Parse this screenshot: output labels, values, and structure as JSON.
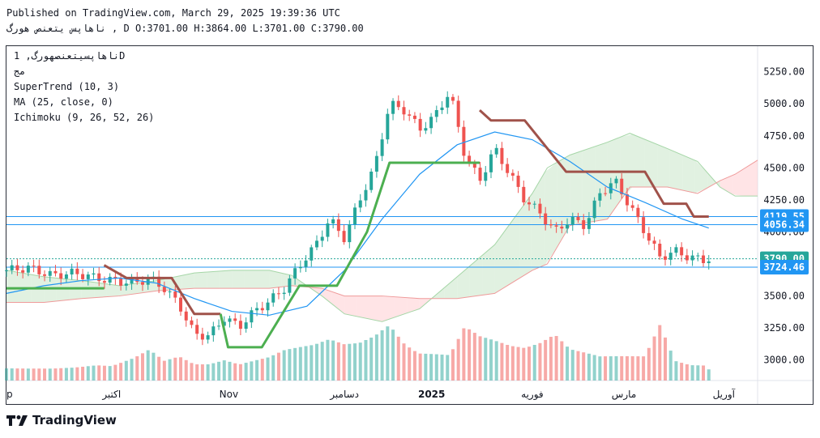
{
  "header": {
    "published": "Published on TradingView.com, March 29, 2025 19:39:36 UTC",
    "symbol_line": "ناهاپس یتعنص هورگ , D O:3701.00 H:3864.00 L:3701.00 C:3790.00"
  },
  "legend": {
    "symbol": "ناهاپسیتعنصهورگ, 1D",
    "sub": "مج",
    "supertrend": "SuperTrend (10, 3)",
    "ma": "MA (25, close, 0)",
    "ichimoku": "Ichimoku (9, 26, 52, 26)"
  },
  "footer": {
    "brand": "TradingView",
    "logo_icon": "tradingview-logo-icon"
  },
  "colors": {
    "up": "#26a69a",
    "down": "#ef5350",
    "supertrend_up": "#4caf50",
    "supertrend_down": "#a0524a",
    "ma": "#2196f3",
    "cloud_bull": "#c8e6c9",
    "cloud_bear": "#ffcdd2",
    "hline": "#2196f3"
  },
  "chart_data": {
    "type": "candlestick",
    "y_ticks": [
      "5250.00",
      "5000.00",
      "4750.00",
      "4500.00",
      "4250.00",
      "4000.00",
      "3750.00",
      "3500.00",
      "3250.00",
      "3000.00"
    ],
    "ylim": [
      2840,
      5450
    ],
    "x_ticks": [
      {
        "label": "p",
        "t": 0
      },
      {
        "label": "اکتبر",
        "t": 0.14
      },
      {
        "label": "Nov",
        "t": 0.296
      },
      {
        "label": "دسامبر",
        "t": 0.45
      },
      {
        "label": "2025",
        "t": 0.566
      },
      {
        "label": "فوریه",
        "t": 0.7
      },
      {
        "label": "مارس",
        "t": 0.822
      },
      {
        "label": "آوریل",
        "t": 0.955
      }
    ],
    "price_labels": [
      {
        "value": 4119.55,
        "text": "4119.55",
        "color": "#2196f3"
      },
      {
        "value": 4056.34,
        "text": "4056.34",
        "color": "#2196f3"
      },
      {
        "value": 3790.0,
        "text": "3790.00",
        "color": "#26a69a"
      },
      {
        "value": 3724.46,
        "text": "3724.46",
        "color": "#2196f3"
      }
    ],
    "anchors": [
      {
        "t": 0.0,
        "c": 3700,
        "v": 0.25
      },
      {
        "t": 0.03,
        "c": 3720,
        "v": 0.22
      },
      {
        "t": 0.06,
        "c": 3660,
        "v": 0.2
      },
      {
        "t": 0.09,
        "c": 3680,
        "v": 0.2
      },
      {
        "t": 0.12,
        "c": 3640,
        "v": 0.22
      },
      {
        "t": 0.14,
        "c": 3620,
        "v": 0.2
      },
      {
        "t": 0.17,
        "c": 3600,
        "v": 0.3
      },
      {
        "t": 0.19,
        "c": 3640,
        "v": 0.4
      },
      {
        "t": 0.21,
        "c": 3560,
        "v": 0.25
      },
      {
        "t": 0.23,
        "c": 3430,
        "v": 0.3
      },
      {
        "t": 0.25,
        "c": 3200,
        "v": 0.2
      },
      {
        "t": 0.27,
        "c": 3190,
        "v": 0.2
      },
      {
        "t": 0.29,
        "c": 3330,
        "v": 0.25
      },
      {
        "t": 0.31,
        "c": 3260,
        "v": 0.2
      },
      {
        "t": 0.33,
        "c": 3380,
        "v": 0.25
      },
      {
        "t": 0.35,
        "c": 3460,
        "v": 0.3
      },
      {
        "t": 0.37,
        "c": 3560,
        "v": 0.4
      },
      {
        "t": 0.39,
        "c": 3740,
        "v": 0.45
      },
      {
        "t": 0.41,
        "c": 3880,
        "v": 0.5
      },
      {
        "t": 0.43,
        "c": 4100,
        "v": 0.6
      },
      {
        "t": 0.45,
        "c": 3950,
        "v": 0.55
      },
      {
        "t": 0.47,
        "c": 4250,
        "v": 0.6
      },
      {
        "t": 0.49,
        "c": 4500,
        "v": 0.75
      },
      {
        "t": 0.51,
        "c": 5000,
        "v": 1.0
      },
      {
        "t": 0.53,
        "c": 4950,
        "v": 0.7
      },
      {
        "t": 0.55,
        "c": 4800,
        "v": 0.55
      },
      {
        "t": 0.57,
        "c": 4900,
        "v": 0.5
      },
      {
        "t": 0.59,
        "c": 5100,
        "v": 0.45
      },
      {
        "t": 0.61,
        "c": 4600,
        "v": 0.9
      },
      {
        "t": 0.63,
        "c": 4400,
        "v": 0.7
      },
      {
        "t": 0.65,
        "c": 4650,
        "v": 0.6
      },
      {
        "t": 0.67,
        "c": 4450,
        "v": 0.5
      },
      {
        "t": 0.69,
        "c": 4250,
        "v": 0.45
      },
      {
        "t": 0.71,
        "c": 4150,
        "v": 0.5
      },
      {
        "t": 0.73,
        "c": 4000,
        "v": 0.6
      },
      {
        "t": 0.75,
        "c": 4100,
        "v": 0.4
      },
      {
        "t": 0.77,
        "c": 4050,
        "v": 0.35
      },
      {
        "t": 0.79,
        "c": 4300,
        "v": 0.3
      },
      {
        "t": 0.81,
        "c": 4400,
        "v": 0.3
      },
      {
        "t": 0.83,
        "c": 4200,
        "v": 0.3
      },
      {
        "t": 0.85,
        "c": 4000,
        "v": 0.3
      },
      {
        "t": 0.87,
        "c": 3800,
        "v": 0.7
      },
      {
        "t": 0.89,
        "c": 3850,
        "v": 0.25
      },
      {
        "t": 0.91,
        "c": 3800,
        "v": 0.2
      },
      {
        "t": 0.93,
        "c": 3780,
        "v": 0.2
      },
      {
        "t": 0.935,
        "c": 3790,
        "v": 0.15
      }
    ],
    "supertrend": [
      {
        "t": 0.0,
        "v": 3560,
        "dir": "up"
      },
      {
        "t": 0.13,
        "v": 3560,
        "dir": "up"
      },
      {
        "t": 0.13,
        "v": 3740,
        "dir": "down"
      },
      {
        "t": 0.16,
        "v": 3640,
        "dir": "down"
      },
      {
        "t": 0.22,
        "v": 3640,
        "dir": "down"
      },
      {
        "t": 0.25,
        "v": 3360,
        "dir": "down"
      },
      {
        "t": 0.285,
        "v": 3360,
        "dir": "down"
      },
      {
        "t": 0.285,
        "v": 3360,
        "dir": "up"
      },
      {
        "t": 0.295,
        "v": 3100,
        "dir": "up"
      },
      {
        "t": 0.34,
        "v": 3100,
        "dir": "up"
      },
      {
        "t": 0.39,
        "v": 3580,
        "dir": "up"
      },
      {
        "t": 0.44,
        "v": 3580,
        "dir": "up"
      },
      {
        "t": 0.48,
        "v": 4000,
        "dir": "up"
      },
      {
        "t": 0.51,
        "v": 4540,
        "dir": "up"
      },
      {
        "t": 0.63,
        "v": 4540,
        "dir": "up"
      },
      {
        "t": 0.63,
        "v": 4950,
        "dir": "down"
      },
      {
        "t": 0.645,
        "v": 4870,
        "dir": "down"
      },
      {
        "t": 0.69,
        "v": 4870,
        "dir": "down"
      },
      {
        "t": 0.745,
        "v": 4470,
        "dir": "down"
      },
      {
        "t": 0.85,
        "v": 4470,
        "dir": "down"
      },
      {
        "t": 0.875,
        "v": 4220,
        "dir": "down"
      },
      {
        "t": 0.905,
        "v": 4220,
        "dir": "down"
      },
      {
        "t": 0.915,
        "v": 4120,
        "dir": "down"
      },
      {
        "t": 0.935,
        "v": 4120,
        "dir": "down"
      }
    ],
    "ma": [
      {
        "t": 0.0,
        "v": 3520
      },
      {
        "t": 0.05,
        "v": 3580
      },
      {
        "t": 0.1,
        "v": 3620
      },
      {
        "t": 0.15,
        "v": 3640
      },
      {
        "t": 0.2,
        "v": 3600
      },
      {
        "t": 0.25,
        "v": 3480
      },
      {
        "t": 0.3,
        "v": 3380
      },
      {
        "t": 0.35,
        "v": 3350
      },
      {
        "t": 0.4,
        "v": 3420
      },
      {
        "t": 0.45,
        "v": 3700
      },
      {
        "t": 0.5,
        "v": 4100
      },
      {
        "t": 0.55,
        "v": 4450
      },
      {
        "t": 0.6,
        "v": 4680
      },
      {
        "t": 0.65,
        "v": 4780
      },
      {
        "t": 0.7,
        "v": 4720
      },
      {
        "t": 0.75,
        "v": 4550
      },
      {
        "t": 0.8,
        "v": 4350
      },
      {
        "t": 0.85,
        "v": 4230
      },
      {
        "t": 0.9,
        "v": 4100
      },
      {
        "t": 0.935,
        "v": 4030
      }
    ],
    "cloud": [
      {
        "t": 0.0,
        "a": 3700,
        "b": 3450
      },
      {
        "t": 0.05,
        "a": 3650,
        "b": 3450
      },
      {
        "t": 0.1,
        "a": 3620,
        "b": 3480
      },
      {
        "t": 0.15,
        "a": 3580,
        "b": 3500
      },
      {
        "t": 0.2,
        "a": 3620,
        "b": 3540
      },
      {
        "t": 0.25,
        "a": 3680,
        "b": 3560
      },
      {
        "t": 0.3,
        "a": 3700,
        "b": 3560
      },
      {
        "t": 0.35,
        "a": 3700,
        "b": 3560
      },
      {
        "t": 0.38,
        "a": 3660,
        "b": 3580
      },
      {
        "t": 0.42,
        "a": 3500,
        "b": 3560
      },
      {
        "t": 0.45,
        "a": 3360,
        "b": 3500
      },
      {
        "t": 0.5,
        "a": 3300,
        "b": 3500
      },
      {
        "t": 0.55,
        "a": 3400,
        "b": 3480
      },
      {
        "t": 0.6,
        "a": 3650,
        "b": 3480
      },
      {
        "t": 0.65,
        "a": 3900,
        "b": 3520
      },
      {
        "t": 0.7,
        "a": 4300,
        "b": 3700
      },
      {
        "t": 0.72,
        "a": 4500,
        "b": 3750
      },
      {
        "t": 0.75,
        "a": 4600,
        "b": 4050
      },
      {
        "t": 0.8,
        "a": 4700,
        "b": 4100
      },
      {
        "t": 0.83,
        "a": 4770,
        "b": 4350
      },
      {
        "t": 0.88,
        "a": 4650,
        "b": 4350
      },
      {
        "t": 0.92,
        "a": 4550,
        "b": 4300
      },
      {
        "t": 0.95,
        "a": 4350,
        "b": 4400
      },
      {
        "t": 0.97,
        "a": 4280,
        "b": 4450
      },
      {
        "t": 1.0,
        "a": 4280,
        "b": 4560
      }
    ]
  }
}
